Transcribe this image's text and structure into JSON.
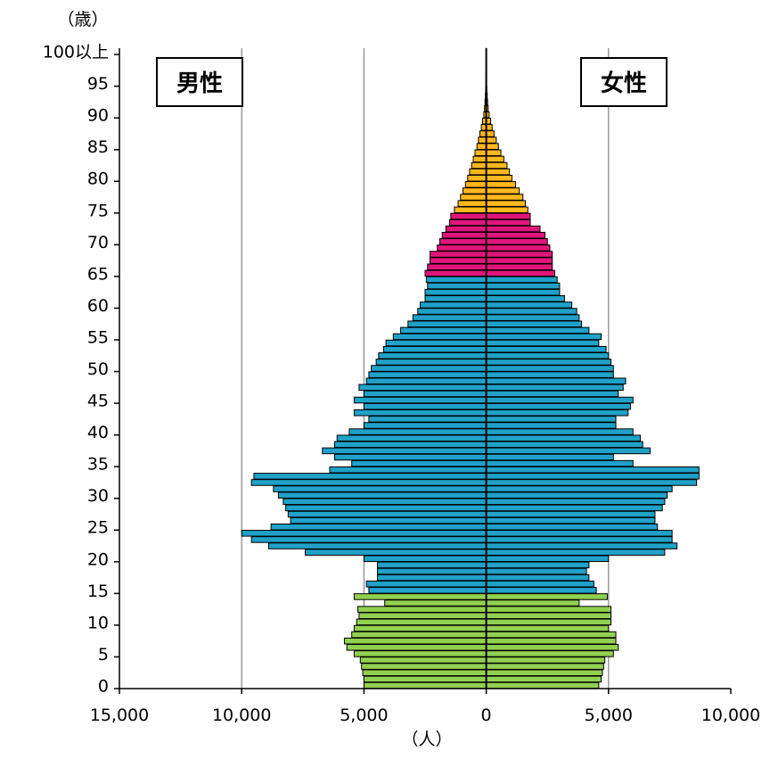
{
  "chart_data": {
    "type": "bar",
    "orientation": "horizontal",
    "layout": "population-pyramid",
    "y_unit": "（歳）",
    "x_unit": "（人）",
    "x_tick_labels": [
      "15,000",
      "10,000",
      "5,000",
      "0",
      "5,000",
      "10,000"
    ],
    "xlim": [
      -15000,
      10000
    ],
    "y_tick_labels": [
      "0",
      "5",
      "10",
      "15",
      "20",
      "25",
      "30",
      "35",
      "40",
      "45",
      "50",
      "55",
      "60",
      "65",
      "70",
      "75",
      "80",
      "85",
      "90",
      "95",
      "100以上"
    ],
    "grid": "vertical",
    "male_label": "男性",
    "female_label": "女性",
    "colors": {
      "0-14": "#92D050",
      "15-64": "#1FA1C8",
      "65-74": "#E0157A",
      "75+": "#FFB81C",
      "outline": "#000000"
    },
    "ages": [
      0,
      1,
      2,
      3,
      4,
      5,
      6,
      7,
      8,
      9,
      10,
      11,
      12,
      13,
      14,
      15,
      16,
      17,
      18,
      19,
      20,
      21,
      22,
      23,
      24,
      25,
      26,
      27,
      28,
      29,
      30,
      31,
      32,
      33,
      34,
      35,
      36,
      37,
      38,
      39,
      40,
      41,
      42,
      43,
      44,
      45,
      46,
      47,
      48,
      49,
      50,
      51,
      52,
      53,
      54,
      55,
      56,
      57,
      58,
      59,
      60,
      61,
      62,
      63,
      64,
      65,
      66,
      67,
      68,
      69,
      70,
      71,
      72,
      73,
      74,
      75,
      76,
      77,
      78,
      79,
      80,
      81,
      82,
      83,
      84,
      85,
      86,
      87,
      88,
      89,
      90,
      91,
      92,
      93,
      94,
      95,
      96,
      97,
      98,
      99,
      100
    ],
    "male": [
      5000,
      5000,
      5050,
      5100,
      5150,
      5400,
      5700,
      5800,
      5500,
      5400,
      5300,
      5200,
      5250,
      4150,
      5400,
      4800,
      4900,
      4450,
      4450,
      4450,
      5000,
      7400,
      8900,
      9600,
      10000,
      8800,
      8000,
      8100,
      8200,
      8300,
      8500,
      8700,
      9600,
      9500,
      6400,
      5500,
      6200,
      6700,
      6200,
      6100,
      5600,
      5000,
      4800,
      5400,
      5000,
      5400,
      5000,
      5200,
      4900,
      4800,
      4700,
      4500,
      4400,
      4200,
      4100,
      3800,
      3500,
      3200,
      3000,
      2800,
      2700,
      2500,
      2500,
      2400,
      2450,
      2500,
      2400,
      2300,
      2300,
      2000,
      1900,
      1800,
      1650,
      1500,
      1450,
      1300,
      1150,
      1050,
      950,
      850,
      760,
      680,
      600,
      530,
      460,
      380,
      320,
      260,
      200,
      150,
      100,
      70,
      50,
      35,
      25,
      15,
      10,
      6,
      4,
      2,
      2
    ],
    "female": [
      4600,
      4700,
      4750,
      4800,
      4850,
      5200,
      5400,
      5300,
      5300,
      5000,
      5100,
      5100,
      5100,
      3800,
      4950,
      4500,
      4400,
      4200,
      4100,
      4200,
      5000,
      7300,
      7800,
      7600,
      7600,
      7000,
      6900,
      6900,
      7200,
      7300,
      7400,
      7600,
      8600,
      8700,
      8700,
      6000,
      5200,
      6700,
      6400,
      6300,
      6000,
      5300,
      5300,
      5800,
      5900,
      6000,
      5400,
      5600,
      5700,
      5200,
      5200,
      5100,
      5000,
      4900,
      4600,
      4700,
      4200,
      3900,
      3800,
      3700,
      3500,
      3200,
      3000,
      3000,
      2900,
      2800,
      2700,
      2700,
      2700,
      2600,
      2500,
      2400,
      2200,
      1800,
      1800,
      1700,
      1600,
      1500,
      1350,
      1200,
      1050,
      950,
      850,
      720,
      600,
      500,
      410,
      320,
      240,
      180,
      120,
      80,
      55,
      40,
      25,
      15,
      10,
      6,
      4,
      2,
      2
    ]
  }
}
